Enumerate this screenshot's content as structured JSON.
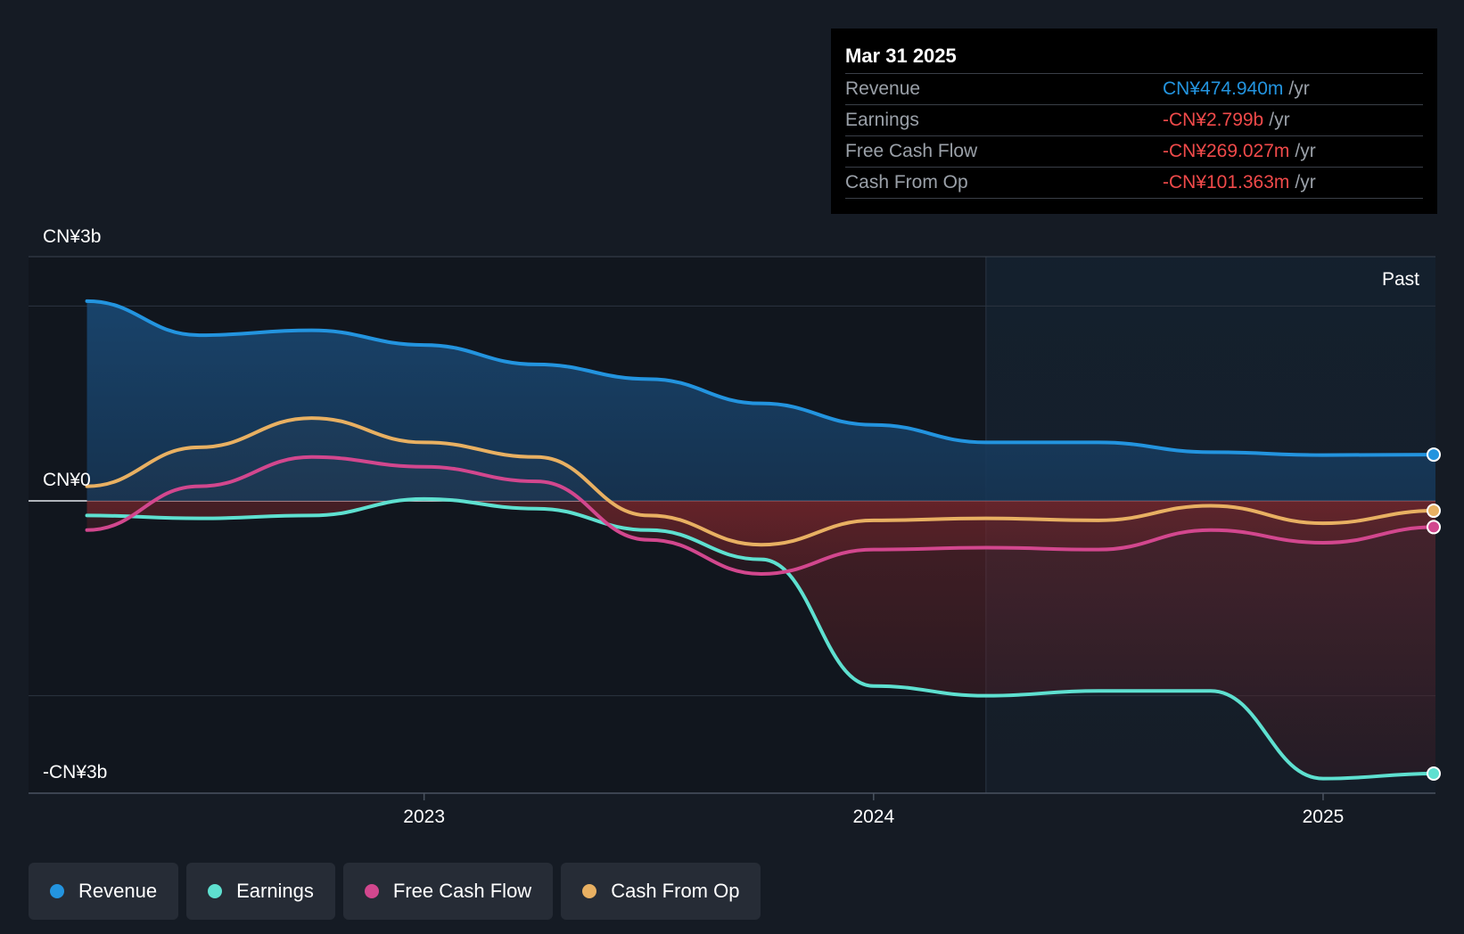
{
  "colors": {
    "revenue": "#2394df",
    "earnings": "#5ee0d0",
    "free_cash_flow": "#d2478e",
    "cash_from_op": "#e8b062",
    "negative_fill": "#8a2a2f"
  },
  "tooltip": {
    "date": "Mar 31 2025",
    "rows": [
      {
        "label": "Revenue",
        "value": "CN¥474.940m",
        "unit": "/yr",
        "color": "#2394df"
      },
      {
        "label": "Earnings",
        "value": "-CN¥2.799b",
        "unit": "/yr",
        "color": "#f04a4a"
      },
      {
        "label": "Free Cash Flow",
        "value": "-CN¥269.027m",
        "unit": "/yr",
        "color": "#f04a4a"
      },
      {
        "label": "Cash From Op",
        "value": "-CN¥101.363m",
        "unit": "/yr",
        "color": "#f04a4a"
      }
    ]
  },
  "legend": [
    {
      "label": "Revenue",
      "color": "#2394df"
    },
    {
      "label": "Earnings",
      "color": "#5ee0d0"
    },
    {
      "label": "Free Cash Flow",
      "color": "#d2478e"
    },
    {
      "label": "Cash From Op",
      "color": "#e8b062"
    }
  ],
  "chart_data": {
    "type": "area",
    "y_ticks": [
      {
        "value": 3,
        "label": "CN¥3b"
      },
      {
        "value": 0,
        "label": "CN¥0"
      },
      {
        "value": -3,
        "label": "-CN¥3b"
      }
    ],
    "ylim": [
      -3,
      3
    ],
    "y_unit": "CN¥ billions",
    "xlim": [
      2022.12,
      2025.25
    ],
    "x_ticks": [
      {
        "value": 2023,
        "label": "2023"
      },
      {
        "value": 2024,
        "label": "2024"
      },
      {
        "value": 2025,
        "label": "2025"
      }
    ],
    "past_label": "Past",
    "past_start": 2024.25,
    "grid": true,
    "legend_position": "bottom-left",
    "series": [
      {
        "name": "Revenue",
        "key": "revenue",
        "x": [
          2022.25,
          2022.5,
          2022.75,
          2023.0,
          2023.25,
          2023.5,
          2023.75,
          2024.0,
          2024.25,
          2024.5,
          2024.75,
          2025.0,
          2025.25
        ],
        "values": [
          2.05,
          1.7,
          1.75,
          1.6,
          1.4,
          1.25,
          1.0,
          0.78,
          0.6,
          0.6,
          0.5,
          0.47,
          0.475
        ]
      },
      {
        "name": "Earnings",
        "key": "earnings",
        "x": [
          2022.25,
          2022.5,
          2022.75,
          2023.0,
          2023.25,
          2023.5,
          2023.75,
          2024.0,
          2024.25,
          2024.5,
          2024.75,
          2025.0,
          2025.25
        ],
        "values": [
          -0.15,
          -0.18,
          -0.15,
          0.02,
          -0.08,
          -0.3,
          -0.6,
          -1.9,
          -2.0,
          -1.95,
          -1.95,
          -2.85,
          -2.799
        ]
      },
      {
        "name": "Free Cash Flow",
        "key": "free_cash_flow",
        "x": [
          2022.25,
          2022.5,
          2022.75,
          2023.0,
          2023.25,
          2023.5,
          2023.75,
          2024.0,
          2024.25,
          2024.5,
          2024.75,
          2025.0,
          2025.25
        ],
        "values": [
          -0.3,
          0.15,
          0.45,
          0.35,
          0.2,
          -0.4,
          -0.75,
          -0.5,
          -0.48,
          -0.5,
          -0.3,
          -0.43,
          -0.269
        ]
      },
      {
        "name": "Cash From Op",
        "key": "cash_from_op",
        "x": [
          2022.25,
          2022.5,
          2022.75,
          2023.0,
          2023.25,
          2023.5,
          2023.75,
          2024.0,
          2024.25,
          2024.5,
          2024.75,
          2025.0,
          2025.25
        ],
        "values": [
          0.15,
          0.55,
          0.85,
          0.6,
          0.45,
          -0.15,
          -0.45,
          -0.2,
          -0.18,
          -0.2,
          -0.05,
          -0.23,
          -0.101
        ]
      }
    ]
  }
}
